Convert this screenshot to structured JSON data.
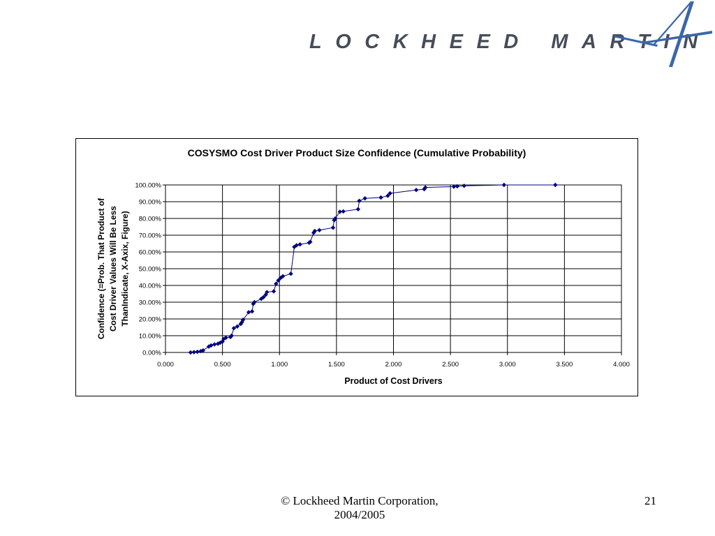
{
  "logo": {
    "wordmark": "LOCKHEED MARTIN",
    "text_color": "#454d59",
    "star_color": "#3a67a8"
  },
  "chart_data": {
    "type": "scatter",
    "title": "COSYSMO Cost Driver Product Size Confidence (Cumulative Probability)",
    "xlabel": "Product of Cost Drivers",
    "ylabel_lines": [
      "Confidence (=Prob. That Product of",
      "Cost Driver Values Will Be Less",
      "ThanIndicate, X-Axix, Figure)"
    ],
    "xlim": [
      0,
      4
    ],
    "ylim": [
      0,
      1
    ],
    "x_ticks": [
      "0.000",
      "0.500",
      "1.000",
      "1.500",
      "2.000",
      "2.500",
      "3.000",
      "3.500",
      "4.000"
    ],
    "y_ticks": [
      "0.00%",
      "10.00%",
      "20.00%",
      "30.00%",
      "40.00%",
      "50.00%",
      "60.00%",
      "70.00%",
      "80.00%",
      "90.00%",
      "100.00%"
    ],
    "grid": "horizontal and vertical",
    "line_style": "line with diamond markers",
    "series_color": "#000080",
    "points": [
      [
        0.22,
        0.0
      ],
      [
        0.25,
        0.002
      ],
      [
        0.28,
        0.004
      ],
      [
        0.31,
        0.008
      ],
      [
        0.33,
        0.012
      ],
      [
        0.38,
        0.035
      ],
      [
        0.4,
        0.042
      ],
      [
        0.43,
        0.048
      ],
      [
        0.46,
        0.052
      ],
      [
        0.48,
        0.058
      ],
      [
        0.5,
        0.065
      ],
      [
        0.51,
        0.08
      ],
      [
        0.53,
        0.088
      ],
      [
        0.57,
        0.092
      ],
      [
        0.58,
        0.1
      ],
      [
        0.6,
        0.145
      ],
      [
        0.63,
        0.155
      ],
      [
        0.66,
        0.17
      ],
      [
        0.67,
        0.18
      ],
      [
        0.68,
        0.195
      ],
      [
        0.73,
        0.24
      ],
      [
        0.76,
        0.245
      ],
      [
        0.77,
        0.29
      ],
      [
        0.78,
        0.3
      ],
      [
        0.84,
        0.32
      ],
      [
        0.86,
        0.33
      ],
      [
        0.88,
        0.345
      ],
      [
        0.89,
        0.36
      ],
      [
        0.95,
        0.365
      ],
      [
        0.97,
        0.41
      ],
      [
        0.99,
        0.43
      ],
      [
        1.01,
        0.445
      ],
      [
        1.03,
        0.455
      ],
      [
        1.1,
        0.47
      ],
      [
        1.13,
        0.63
      ],
      [
        1.15,
        0.64
      ],
      [
        1.18,
        0.645
      ],
      [
        1.26,
        0.655
      ],
      [
        1.27,
        0.66
      ],
      [
        1.3,
        0.715
      ],
      [
        1.31,
        0.725
      ],
      [
        1.35,
        0.73
      ],
      [
        1.47,
        0.745
      ],
      [
        1.48,
        0.79
      ],
      [
        1.49,
        0.8
      ],
      [
        1.53,
        0.84
      ],
      [
        1.56,
        0.842
      ],
      [
        1.69,
        0.855
      ],
      [
        1.7,
        0.905
      ],
      [
        1.75,
        0.92
      ],
      [
        1.89,
        0.925
      ],
      [
        1.95,
        0.935
      ],
      [
        1.97,
        0.95
      ],
      [
        2.2,
        0.97
      ],
      [
        2.27,
        0.975
      ],
      [
        2.28,
        0.985
      ],
      [
        2.53,
        0.99
      ],
      [
        2.56,
        0.992
      ],
      [
        2.62,
        0.995
      ],
      [
        2.97,
        1.0
      ],
      [
        3.42,
        1.0
      ]
    ]
  },
  "footer": {
    "copyright_line1": "© Lockheed Martin Corporation,",
    "copyright_line2": "2004/2005",
    "page_number": "21"
  }
}
